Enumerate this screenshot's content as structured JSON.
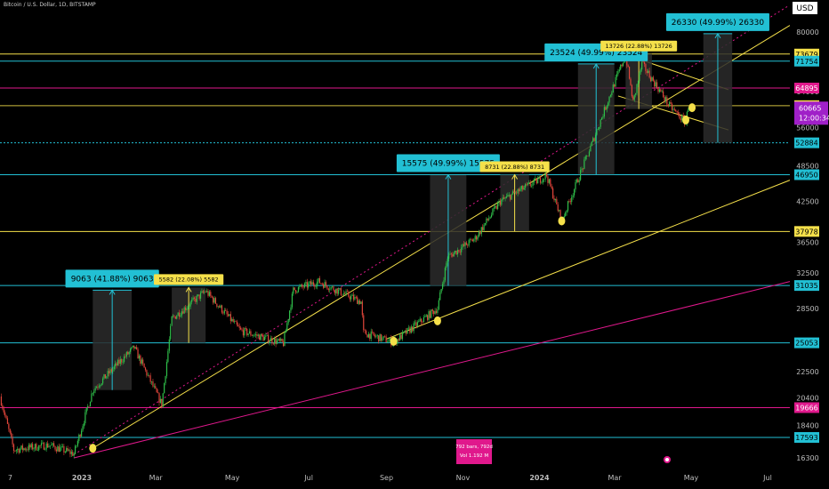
{
  "header": {
    "symbol_title": "Bitcoin / U.S. Dollar, 1D, BITSTAMP"
  },
  "colors": {
    "background": "#000000",
    "up": "#2fbf4a",
    "down": "#e0453a",
    "cyan": "#22c0d4",
    "yellow": "#f5e04a",
    "magenta": "#e0188c",
    "box_fill": "#2b2b2b"
  },
  "chart_data": {
    "type": "candlestick",
    "title": "Bitcoin / U.S. Dollar, 1D, BITSTAMP",
    "currency": "USD",
    "x_ticks": [
      "7",
      "2023",
      "Mar",
      "May",
      "Jul",
      "Sep",
      "Nov",
      "2024",
      "Mar",
      "May",
      "Jul"
    ],
    "y_ticks": [
      16300,
      18400,
      20400,
      22500,
      25000,
      28500,
      32500,
      36500,
      42500,
      48500,
      56000,
      64000,
      80000
    ],
    "current_price": "60665",
    "countdown": "12:00:34",
    "price_path": [
      [
        "2022-11-01",
        20500
      ],
      [
        "2022-11-12",
        16800
      ],
      [
        "2022-12-10",
        17100
      ],
      [
        "2022-12-30",
        16550
      ],
      [
        "2023-01-14",
        21000
      ],
      [
        "2023-02-05",
        23400
      ],
      [
        "2023-02-16",
        24600
      ],
      [
        "2023-03-10",
        19900
      ],
      [
        "2023-03-18",
        27400
      ],
      [
        "2023-04-14",
        30400
      ],
      [
        "2023-05-12",
        26200
      ],
      [
        "2023-06-15",
        25000
      ],
      [
        "2023-06-23",
        30500
      ],
      [
        "2023-07-13",
        31500
      ],
      [
        "2023-08-16",
        29200
      ],
      [
        "2023-08-18",
        26000
      ],
      [
        "2023-09-11",
        25100
      ],
      [
        "2023-10-01",
        27000
      ],
      [
        "2023-10-16",
        28500
      ],
      [
        "2023-10-24",
        34500
      ],
      [
        "2023-11-15",
        37000
      ],
      [
        "2023-12-05",
        42500
      ],
      [
        "2024-01-11",
        46800
      ],
      [
        "2024-01-23",
        39500
      ],
      [
        "2024-02-15",
        52000
      ],
      [
        "2024-03-05",
        66000
      ],
      [
        "2024-03-14",
        73500
      ],
      [
        "2024-03-20",
        61500
      ],
      [
        "2024-03-27",
        71000
      ],
      [
        "2024-04-13",
        63000
      ],
      [
        "2024-04-17",
        61000
      ],
      [
        "2024-05-01",
        57000
      ],
      [
        "2024-05-03",
        60665
      ]
    ],
    "horizontal_levels": [
      {
        "price": 73679,
        "label": "73679",
        "color": "yellow"
      },
      {
        "price": 71754,
        "label": "71754",
        "color": "cyan"
      },
      {
        "price": 64895,
        "label": "64895",
        "color": "magenta"
      },
      {
        "price": 60760,
        "label": "60760",
        "color": "yellow"
      },
      {
        "price": 52884,
        "label": "52884",
        "color": "cyan"
      },
      {
        "price": 46950,
        "label": "46950",
        "color": "cyan"
      },
      {
        "price": 37978,
        "label": "37978",
        "color": "yellow"
      },
      {
        "price": 31035,
        "label": "31035",
        "color": "cyan"
      },
      {
        "price": 25053,
        "label": "25053",
        "color": "cyan"
      },
      {
        "price": 19666,
        "label": "19666",
        "color": "magenta"
      },
      {
        "price": 17593,
        "label": "17593",
        "color": "cyan"
      }
    ],
    "measure_labels": [
      "9063 (41.88%) 9063",
      "5582 (22.08%) 5582",
      "15575 (49.99%) 15575",
      "8731 (22.88%) 8731",
      "23524 (49.99%) 23524",
      "13726 (22.88%) 13726",
      "26330 (49.99%) 26330"
    ],
    "range_info": [
      "792 bars, 792d",
      "Vol 1.192 M"
    ],
    "grid": false
  }
}
